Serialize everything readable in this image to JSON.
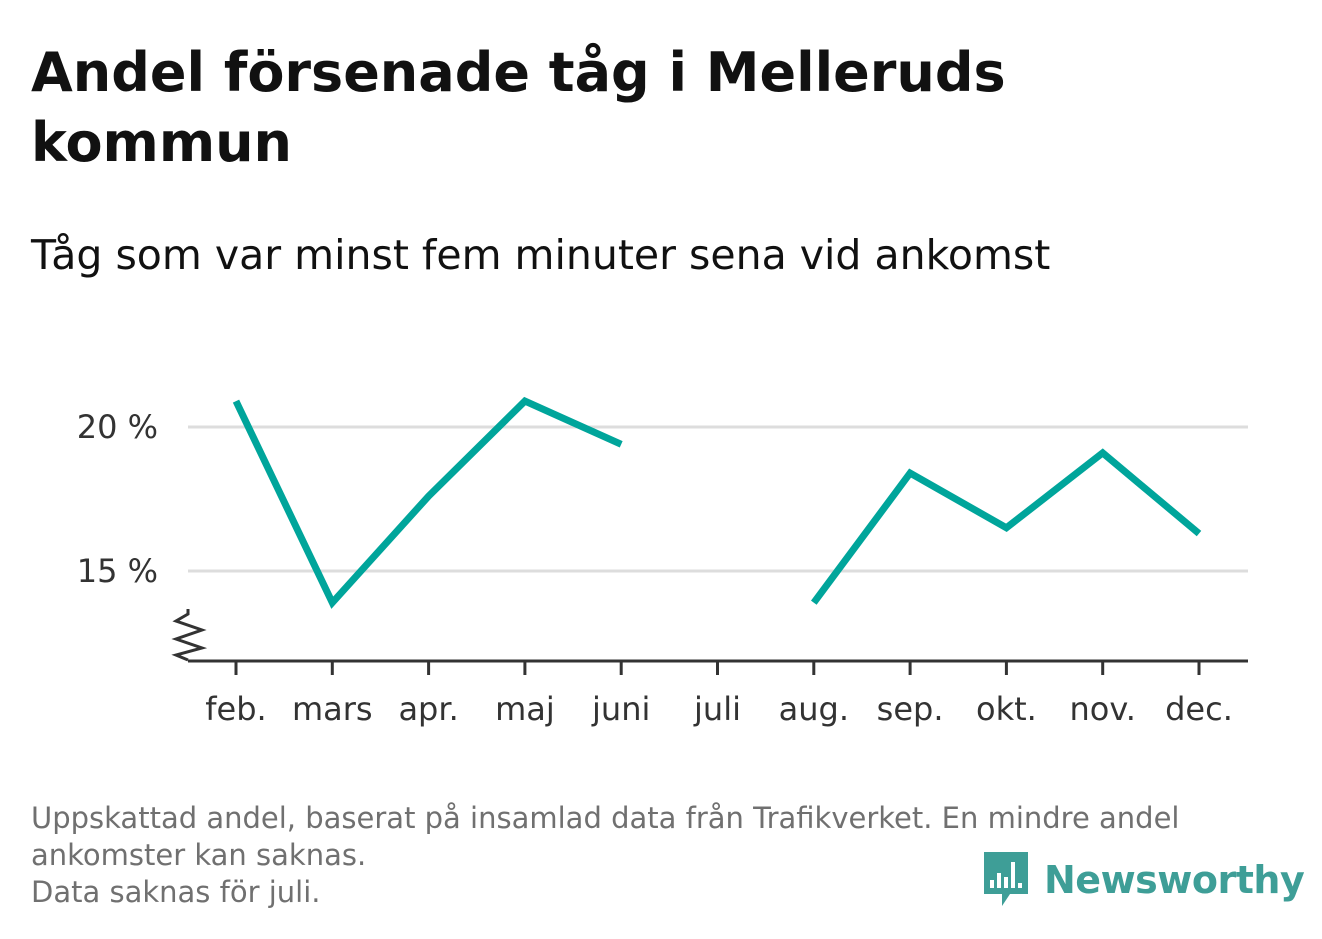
{
  "title": "Andel försenade tåg i Melleruds kommun",
  "subtitle": "Tåg som var minst fem minuter sena vid ankomst",
  "footnote": {
    "line1": "Uppskattad andel, baserat på insamlad data från Trafikverket. En mindre andel",
    "line2": "ankomster kan saknas.",
    "line3": "Data saknas för juli."
  },
  "brand": {
    "name": "Newsworthy",
    "icon": "newsworthy-logo-icon",
    "color": "#3e9e97"
  },
  "chart_data": {
    "type": "line",
    "categories": [
      "feb.",
      "mars",
      "apr.",
      "maj",
      "juni",
      "juli",
      "aug.",
      "sep.",
      "okt.",
      "nov.",
      "dec."
    ],
    "series": [
      {
        "values": [
          20.9,
          13.9,
          17.6,
          20.9,
          19.4,
          null,
          13.9,
          18.4,
          16.5,
          19.1,
          16.3
        ]
      }
    ],
    "yticks": [
      15,
      20
    ],
    "ytick_labels": [
      "15 %",
      "20 %"
    ],
    "ylim": [
      12.9,
      22
    ],
    "y_axis_break": true,
    "grid": "horizontal",
    "line_color": "#00a59b",
    "grid_color": "#dddddd",
    "axis_color": "#333333"
  }
}
